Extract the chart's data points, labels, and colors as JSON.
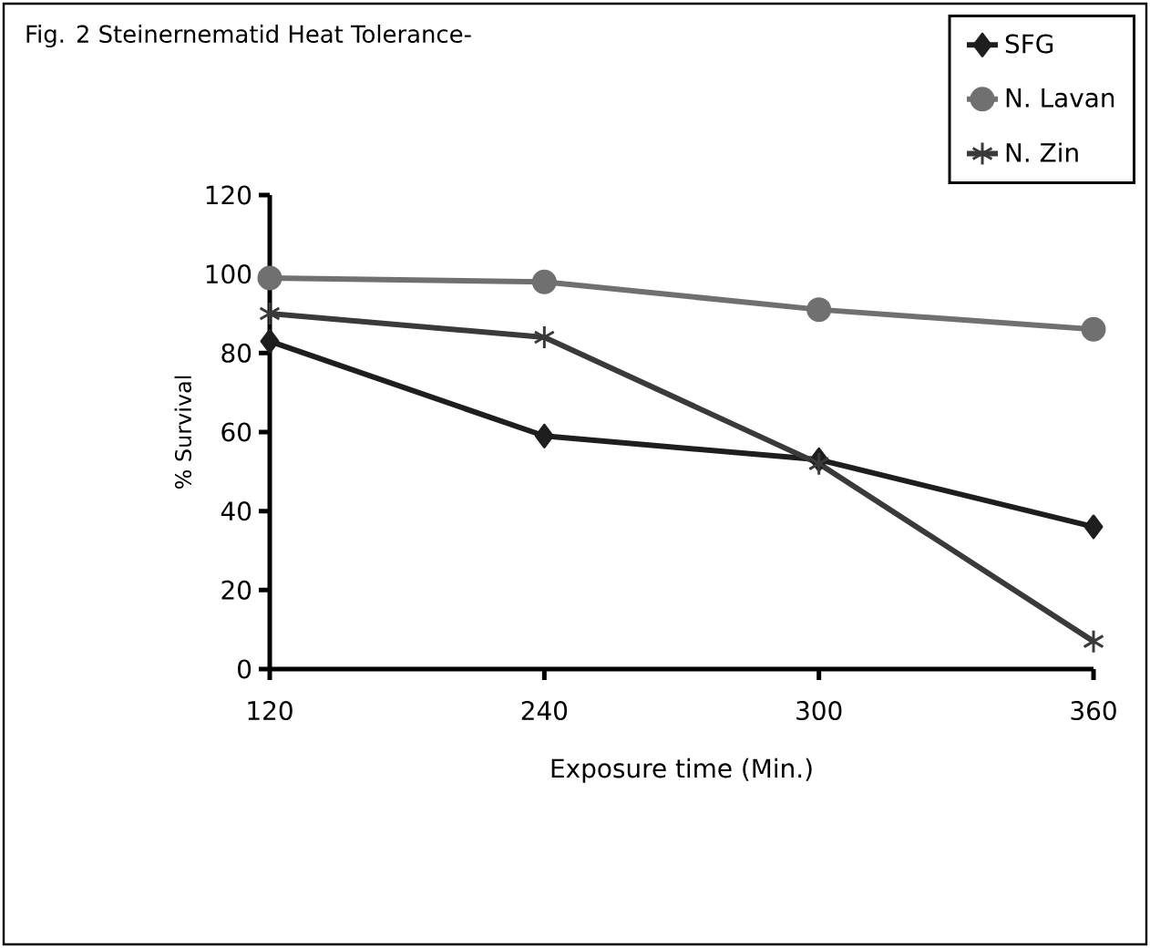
{
  "chart_data": {
    "type": "line",
    "title": "Fig. 2 Steinernematid Heat Tolerance-",
    "xlabel": "Exposure time (Min.)",
    "ylabel": "% Survival",
    "categories": [
      "120",
      "240",
      "300",
      "360"
    ],
    "ylim": [
      0,
      120
    ],
    "yticks": [
      0,
      20,
      40,
      60,
      80,
      100,
      120
    ],
    "legend": "top right",
    "series": [
      {
        "name": "SFG",
        "color": "#1e1e1e",
        "marker": "diamond",
        "values": [
          83,
          59,
          53,
          36
        ]
      },
      {
        "name": "N. Lavan",
        "color": "#707070",
        "marker": "circle",
        "values": [
          99,
          98,
          91,
          86
        ]
      },
      {
        "name": "N. Zin",
        "color": "#3a3a3a",
        "marker": "cross",
        "values": [
          90,
          84,
          52,
          7
        ]
      }
    ]
  }
}
